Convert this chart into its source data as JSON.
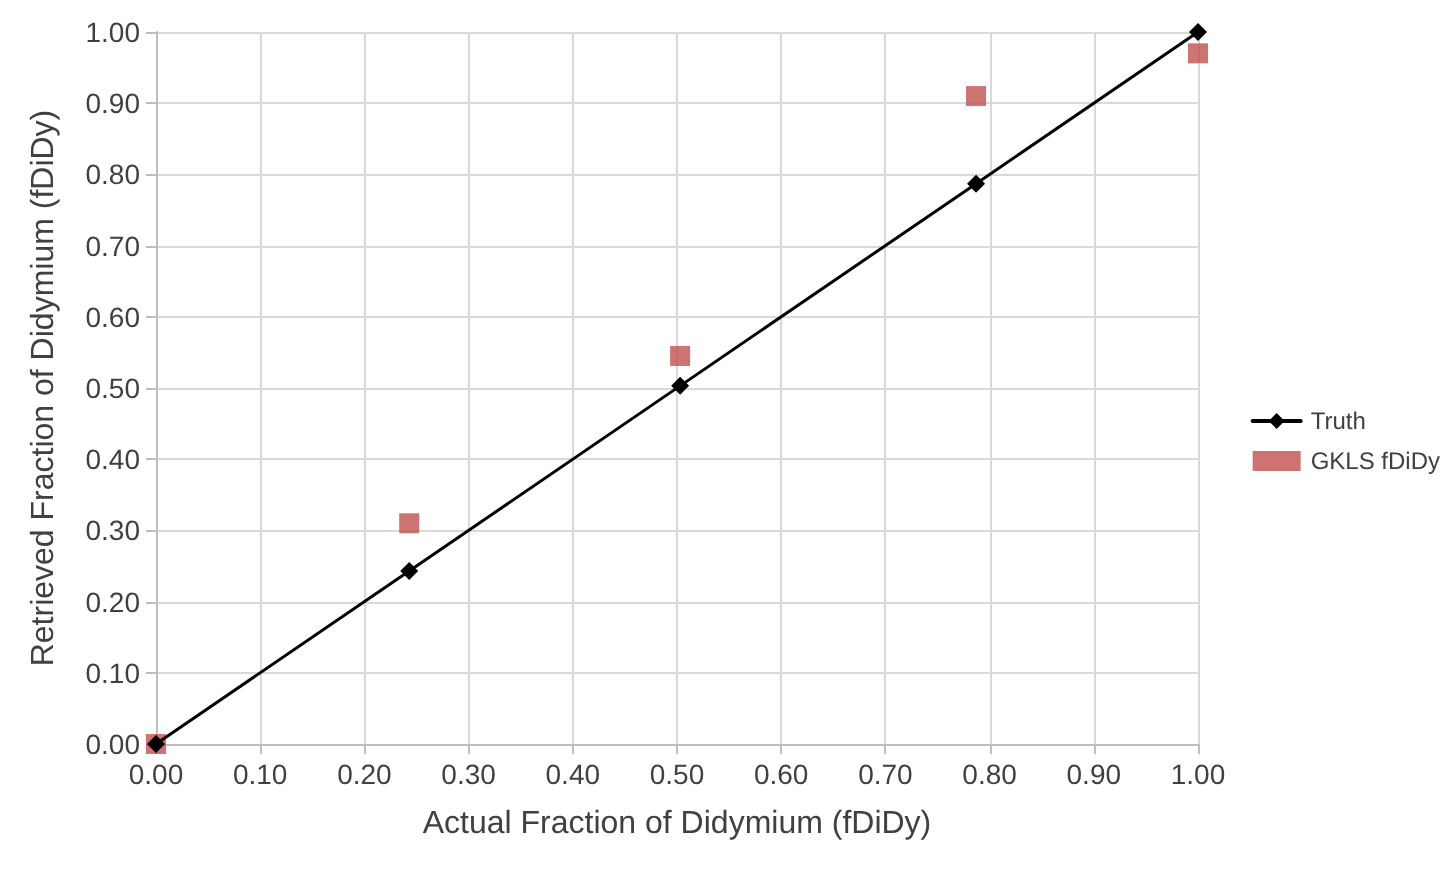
{
  "chart_data": {
    "type": "scatter",
    "xlabel": "Actual Fraction of Didymium (fDiDy)",
    "ylabel": "Retrieved Fraction of Didymium (fDiDy)",
    "x": [
      0,
      0.243,
      0.503,
      0.787,
      1
    ],
    "series": [
      {
        "name": "Truth",
        "type": "line",
        "color": "#000000",
        "marker": "diamond",
        "line_style": "solid",
        "values": [
          0,
          0.243,
          0.503,
          0.787,
          1
        ]
      },
      {
        "name": "GKLS fDiDy",
        "color": "#c0504d",
        "marker": "square",
        "values": [
          0,
          0.31,
          0.545,
          0.91,
          0.97
        ]
      }
    ],
    "xlim": [
      0,
      1
    ],
    "xticks": [
      {
        "value": 0,
        "label": "0.00"
      },
      {
        "value": 0.1,
        "label": "0.10"
      },
      {
        "value": 0.2,
        "label": "0.20"
      },
      {
        "value": 0.3,
        "label": "0.30"
      },
      {
        "value": 0.4,
        "label": "0.40"
      },
      {
        "value": 0.5,
        "label": "0.50"
      },
      {
        "value": 0.6,
        "label": "0.60"
      },
      {
        "value": 0.7,
        "label": "0.70"
      },
      {
        "value": 0.8,
        "label": "0.80"
      },
      {
        "value": 0.9,
        "label": "0.90"
      },
      {
        "value": 1,
        "label": "1.00"
      }
    ],
    "ylim": [
      0,
      1
    ],
    "yticks": [
      {
        "value": 0,
        "label": "0.00"
      },
      {
        "value": 0.1,
        "label": "0.10"
      },
      {
        "value": 0.2,
        "label": "0.20"
      },
      {
        "value": 0.3,
        "label": "0.30"
      },
      {
        "value": 0.4,
        "label": "0.40"
      },
      {
        "value": 0.5,
        "label": "0.50"
      },
      {
        "value": 0.6,
        "label": "0.60"
      },
      {
        "value": 0.7,
        "label": "0.70"
      },
      {
        "value": 0.8,
        "label": "0.80"
      },
      {
        "value": 0.9,
        "label": "0.90"
      },
      {
        "value": 1,
        "label": "1.00"
      }
    ],
    "grid": true,
    "legend": "right"
  }
}
